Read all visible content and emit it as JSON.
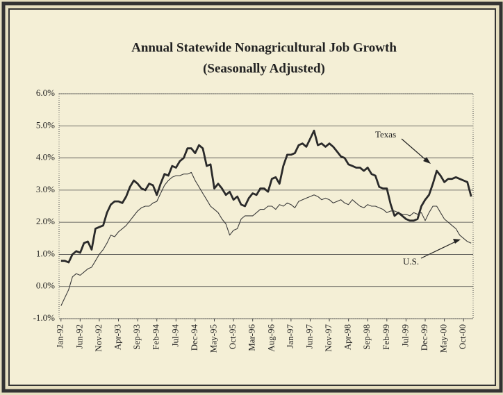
{
  "chart_data": {
    "type": "line",
    "title": "Annual Statewide Nonagricultural Job Growth",
    "subtitle": "(Seasonally Adjusted)",
    "categories": [
      "Jan-92",
      null,
      null,
      null,
      null,
      "Jun-92",
      null,
      null,
      null,
      null,
      "Nov-92",
      null,
      null,
      null,
      null,
      "Apr-93",
      null,
      null,
      null,
      null,
      "Sep-93",
      null,
      null,
      null,
      null,
      "Feb-94",
      null,
      null,
      null,
      null,
      "Jul-94",
      null,
      null,
      null,
      null,
      "Dec-94",
      null,
      null,
      null,
      null,
      "May-95",
      null,
      null,
      null,
      null,
      "Oct-95",
      null,
      null,
      null,
      null,
      "Mar-96",
      null,
      null,
      null,
      null,
      "Aug-96",
      null,
      null,
      null,
      null,
      "Jan-97",
      null,
      null,
      null,
      null,
      "Jun-97",
      null,
      null,
      null,
      null,
      "Nov-97",
      null,
      null,
      null,
      null,
      "Apr-98",
      null,
      null,
      null,
      null,
      "Sep-98",
      null,
      null,
      null,
      null,
      "Feb-99",
      null,
      null,
      null,
      null,
      "Jul-99",
      null,
      null,
      null,
      null,
      "Dec-99",
      null,
      null,
      null,
      null,
      "May-00",
      null,
      null,
      null,
      null,
      "Oct-00",
      null,
      null
    ],
    "series": [
      {
        "name": "Texas",
        "color": "#2a2a2a",
        "values": [
          0.8,
          0.8,
          0.75,
          1.0,
          1.1,
          1.05,
          1.35,
          1.4,
          1.15,
          1.8,
          1.85,
          1.9,
          2.3,
          2.55,
          2.65,
          2.65,
          2.6,
          2.8,
          3.1,
          3.3,
          3.2,
          3.05,
          3.0,
          3.2,
          3.15,
          2.85,
          3.2,
          3.5,
          3.45,
          3.75,
          3.7,
          3.9,
          4.0,
          4.3,
          4.3,
          4.15,
          4.4,
          4.3,
          3.75,
          3.8,
          3.05,
          3.2,
          3.05,
          2.85,
          2.95,
          2.7,
          2.8,
          2.55,
          2.5,
          2.75,
          2.9,
          2.85,
          3.05,
          3.05,
          2.95,
          3.35,
          3.4,
          3.2,
          3.75,
          4.1,
          4.1,
          4.15,
          4.4,
          4.45,
          4.35,
          4.6,
          4.85,
          4.4,
          4.45,
          4.35,
          4.45,
          4.35,
          4.2,
          4.05,
          4.0,
          3.8,
          3.75,
          3.7,
          3.7,
          3.6,
          3.7,
          3.5,
          3.45,
          3.1,
          3.05,
          3.05,
          2.55,
          2.2,
          2.3,
          2.2,
          2.1,
          2.05,
          2.05,
          2.1,
          2.5,
          2.7,
          2.85,
          3.2,
          3.6,
          3.45,
          3.25,
          3.35,
          3.35,
          3.4,
          3.35,
          3.3,
          3.25,
          2.8
        ]
      },
      {
        "name": "U.S.",
        "color": "#3a3a3a",
        "values": [
          -0.6,
          -0.35,
          -0.1,
          0.3,
          0.4,
          0.35,
          0.45,
          0.55,
          0.6,
          0.8,
          1.0,
          1.15,
          1.35,
          1.6,
          1.55,
          1.7,
          1.8,
          1.9,
          2.05,
          2.2,
          2.35,
          2.45,
          2.5,
          2.5,
          2.6,
          2.65,
          2.9,
          3.15,
          3.3,
          3.4,
          3.45,
          3.45,
          3.5,
          3.5,
          3.55,
          3.3,
          3.1,
          2.9,
          2.7,
          2.5,
          2.4,
          2.3,
          2.1,
          1.95,
          1.6,
          1.75,
          1.8,
          2.1,
          2.2,
          2.2,
          2.2,
          2.3,
          2.4,
          2.4,
          2.5,
          2.5,
          2.4,
          2.55,
          2.5,
          2.6,
          2.55,
          2.45,
          2.65,
          2.7,
          2.75,
          2.8,
          2.85,
          2.8,
          2.7,
          2.75,
          2.7,
          2.6,
          2.65,
          2.7,
          2.6,
          2.55,
          2.7,
          2.6,
          2.5,
          2.45,
          2.55,
          2.5,
          2.5,
          2.45,
          2.4,
          2.3,
          2.35,
          2.35,
          2.3,
          2.25,
          2.25,
          2.2,
          2.3,
          2.25,
          2.3,
          2.05,
          2.3,
          2.5,
          2.5,
          2.3,
          2.1,
          2.0,
          1.9,
          1.8,
          1.6,
          1.5,
          1.4,
          1.35
        ]
      }
    ],
    "ylim": [
      -1,
      6
    ],
    "yticks": [
      {
        "value": -1,
        "label": "-1.0%"
      },
      {
        "value": 0,
        "label": "0.0%"
      },
      {
        "value": 1,
        "label": "1.0%"
      },
      {
        "value": 2,
        "label": "2.0%"
      },
      {
        "value": 3,
        "label": "3.0%"
      },
      {
        "value": 4,
        "label": "4.0%"
      },
      {
        "value": 5,
        "label": "5.0%"
      },
      {
        "value": 6,
        "label": "6.0%"
      }
    ],
    "grid": true,
    "annotations": [
      "Texas",
      "U.S."
    ]
  }
}
